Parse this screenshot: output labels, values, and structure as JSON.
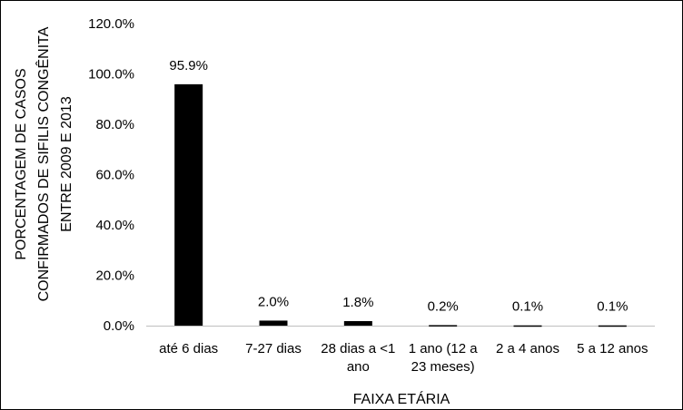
{
  "chart_data": {
    "type": "bar",
    "categories": [
      [
        "até 6 dias"
      ],
      [
        "7-27 dias"
      ],
      [
        "28 dias a <1",
        "ano"
      ],
      [
        "1 ano (12 a",
        "23 meses)"
      ],
      [
        "2 a 4 anos"
      ],
      [
        "5 a 12 anos"
      ]
    ],
    "values": [
      95.9,
      2.0,
      1.8,
      0.2,
      0.1,
      0.1
    ],
    "data_labels": [
      "95.9%",
      "2.0%",
      "1.8%",
      "0.2%",
      "0.1%",
      "0.1%"
    ],
    "xlabel": "FAIXA ETÁRIA",
    "ylabel": [
      "PORCENTAGEM DE CASOS",
      "CONFIRMADOS DE SIFILIS CONGÊNITA",
      "ENTRE 2009 E 2013"
    ],
    "ylim": [
      0,
      120
    ],
    "yticks": [
      0,
      20,
      40,
      60,
      80,
      100,
      120
    ],
    "ytick_labels": [
      "0.0%",
      "20.0%",
      "40.0%",
      "60.0%",
      "80.0%",
      "100.0%",
      "120.0%"
    ],
    "grid": false,
    "legend": "none",
    "bar_color": "#000000"
  }
}
